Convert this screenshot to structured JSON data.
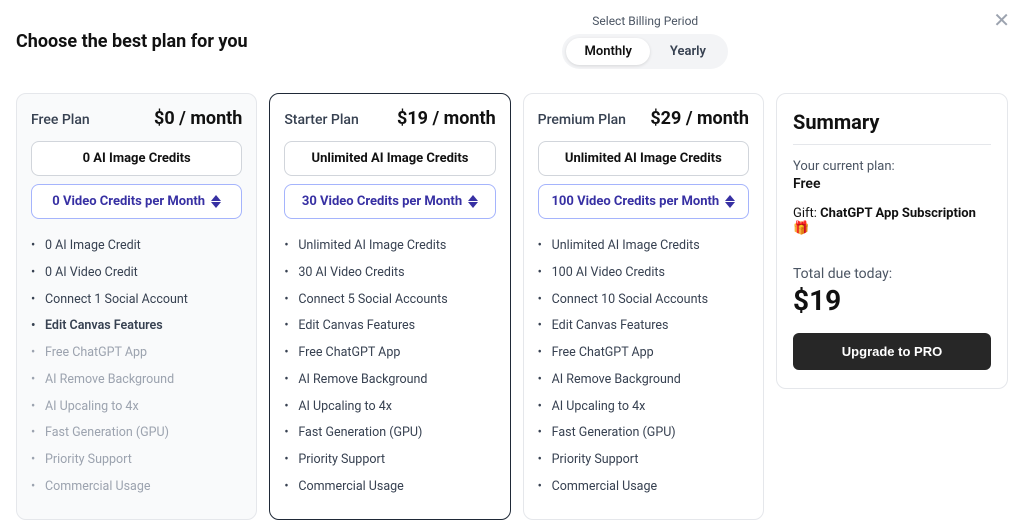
{
  "heading": "Choose the best plan for you",
  "close_glyph": "✕",
  "billing": {
    "label": "Select Billing Period",
    "options": [
      "Monthly",
      "Yearly"
    ],
    "active_index": 0
  },
  "plans": [
    {
      "id": "free",
      "name": "Free Plan",
      "price": "$0 / month",
      "credits_pill": "0 AI Image Credits",
      "video_pill": "0 Video Credits per Month",
      "video_pill_has_stepper": true,
      "featured": false,
      "bg_free": true,
      "features": [
        {
          "text": "0 AI Image Credit",
          "disabled": false,
          "bold": false
        },
        {
          "text": "0 AI Video Credit",
          "disabled": false,
          "bold": false
        },
        {
          "text": "Connect 1 Social Account",
          "disabled": false,
          "bold": false
        },
        {
          "text": "Edit Canvas Features",
          "disabled": false,
          "bold": true
        },
        {
          "text": "Free ChatGPT App",
          "disabled": true,
          "bold": false
        },
        {
          "text": "AI Remove Background",
          "disabled": true,
          "bold": false
        },
        {
          "text": "AI Upcaling to 4x",
          "disabled": true,
          "bold": false
        },
        {
          "text": "Fast Generation (GPU)",
          "disabled": true,
          "bold": false
        },
        {
          "text": "Priority Support",
          "disabled": true,
          "bold": false
        },
        {
          "text": "Commercial Usage",
          "disabled": true,
          "bold": false
        }
      ]
    },
    {
      "id": "starter",
      "name": "Starter Plan",
      "price": "$19 / month",
      "credits_pill": "Unlimited AI Image Credits",
      "video_pill": "30 Video Credits per Month",
      "video_pill_has_stepper": true,
      "featured": true,
      "bg_free": false,
      "features": [
        {
          "text": "Unlimited AI Image Credits",
          "disabled": false,
          "bold": false
        },
        {
          "text": "30 AI Video Credits",
          "disabled": false,
          "bold": false
        },
        {
          "text": "Connect 5 Social Accounts",
          "disabled": false,
          "bold": false
        },
        {
          "text": "Edit Canvas Features",
          "disabled": false,
          "bold": false
        },
        {
          "text": "Free ChatGPT App",
          "disabled": false,
          "bold": false
        },
        {
          "text": "AI Remove Background",
          "disabled": false,
          "bold": false
        },
        {
          "text": "AI Upcaling to 4x",
          "disabled": false,
          "bold": false
        },
        {
          "text": "Fast Generation (GPU)",
          "disabled": false,
          "bold": false
        },
        {
          "text": "Priority Support",
          "disabled": false,
          "bold": false
        },
        {
          "text": "Commercial Usage",
          "disabled": false,
          "bold": false
        }
      ]
    },
    {
      "id": "premium",
      "name": "Premium Plan",
      "price": "$29 / month",
      "credits_pill": "Unlimited AI Image Credits",
      "video_pill": "100 Video Credits per Month",
      "video_pill_has_stepper": true,
      "featured": false,
      "bg_free": false,
      "features": [
        {
          "text": "Unlimited AI Image Credits",
          "disabled": false,
          "bold": false
        },
        {
          "text": "100 AI Video Credits",
          "disabled": false,
          "bold": false
        },
        {
          "text": "Connect 10 Social Accounts",
          "disabled": false,
          "bold": false
        },
        {
          "text": "Edit Canvas Features",
          "disabled": false,
          "bold": false
        },
        {
          "text": "Free ChatGPT App",
          "disabled": false,
          "bold": false
        },
        {
          "text": "AI Remove Background",
          "disabled": false,
          "bold": false
        },
        {
          "text": "AI Upcaling to 4x",
          "disabled": false,
          "bold": false
        },
        {
          "text": "Fast Generation (GPU)",
          "disabled": false,
          "bold": false
        },
        {
          "text": "Priority Support",
          "disabled": false,
          "bold": false
        },
        {
          "text": "Commercial Usage",
          "disabled": false,
          "bold": false
        }
      ]
    }
  ],
  "summary": {
    "title": "Summary",
    "current_plan_label": "Your current plan:",
    "current_plan_value": "Free",
    "gift_prefix": "Gift: ",
    "gift_value": "ChatGPT App Subscription",
    "gift_emoji": "🎁",
    "total_label": "Total due today:",
    "total_amount": "$19",
    "cta": "Upgrade to PRO"
  },
  "colors": {
    "border": "#e5e7eb",
    "featured_border": "#1f2937",
    "accent_border": "#a5b4fc",
    "accent_text": "#3730a3",
    "muted_text": "#9ca3af",
    "body_text": "#374151",
    "button_bg": "#272727"
  }
}
